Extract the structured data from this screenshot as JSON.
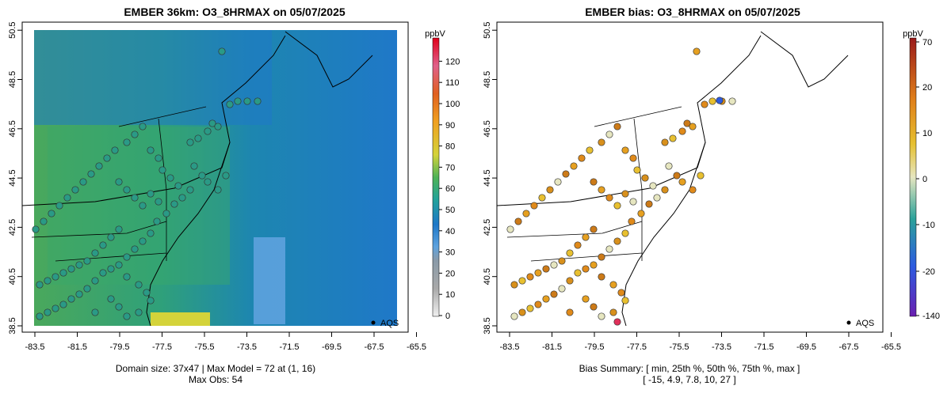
{
  "left_panel": {
    "title": "EMBER 36km: O3_8HRMAX on 05/07/2025",
    "unit": "ppbV",
    "colorbar_ticks": [
      "0",
      "10",
      "20",
      "30",
      "40",
      "50",
      "60",
      "70",
      "80",
      "90",
      "100",
      "110",
      "120"
    ],
    "legend_label": "AQS",
    "footer_line1": "Domain size: 37x47 | Max Model = 72 at (1, 16)",
    "footer_line2": "Max Obs: 54"
  },
  "right_panel": {
    "title": "EMBER bias: O3_8HRMAX on 05/07/2025",
    "unit": "ppbV",
    "colorbar_ticks": [
      "-140",
      "-20",
      "-10",
      "0",
      "10",
      "20",
      "70"
    ],
    "legend_label": "AQS",
    "footer_line1": "Bias Summary: [ min, 25th %, 50th %, 75th %, max ]",
    "footer_line2": "[ -15,   4.9,   7.8,   10,   27 ]"
  },
  "axes": {
    "x_ticks": [
      "-83.5",
      "-81.5",
      "-79.5",
      "-77.5",
      "-75.5",
      "-73.5",
      "-71.5",
      "-69.5",
      "-67.5",
      "-65.5"
    ],
    "y_ticks": [
      "38.5",
      "40.5",
      "42.5",
      "44.5",
      "46.5",
      "48.5",
      "50.5"
    ]
  },
  "colors": {
    "concentration_scale": [
      "#f0f0f0",
      "#a9a9a9",
      "#5ea2de",
      "#1f78c8",
      "#23a39a",
      "#4fb356",
      "#d4d33a",
      "#f0a020",
      "#e06020",
      "#e0608a",
      "#e0001a"
    ],
    "bias_scale": [
      "#6a1fb0",
      "#2d5be0",
      "#2ba29a",
      "#e6e6c0",
      "#e6c030",
      "#e07f1a",
      "#9a1a1a"
    ]
  }
}
